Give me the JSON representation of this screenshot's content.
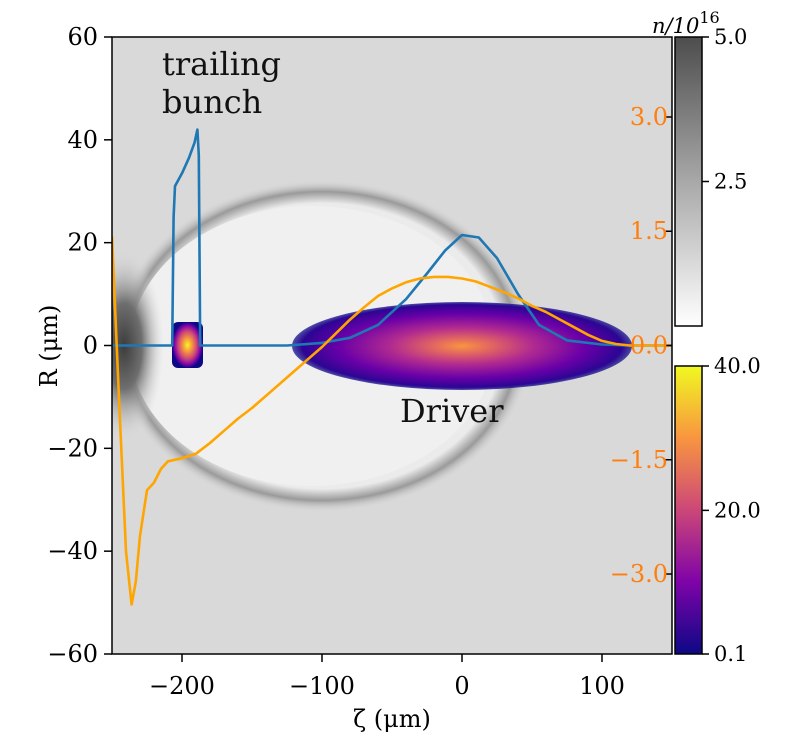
{
  "chart_data": {
    "type": "heatmap",
    "xlabel": "ζ (μm)",
    "ylabel": "R (μm)",
    "xlim": [
      -250,
      150
    ],
    "ylim": [
      -60,
      60
    ],
    "x_ticks": [
      "−200",
      "−100",
      "0",
      "100"
    ],
    "x_tick_values": [
      -200,
      -100,
      0,
      100
    ],
    "y_ticks": [
      "60",
      "40",
      "20",
      "0",
      "−20",
      "−40",
      "−60"
    ],
    "y_tick_values": [
      60,
      40,
      20,
      0,
      -20,
      -40,
      -60
    ],
    "right_axis": {
      "color": "#ff7f0e",
      "ylim": [
        -4.05,
        4.05
      ],
      "ticks": [
        "3.0",
        "1.5",
        "0.0",
        "−1.5",
        "−3.0"
      ],
      "tick_values": [
        3.0,
        1.5,
        0.0,
        -1.5,
        -3.0
      ]
    },
    "colorbars": [
      {
        "label": "n/10",
        "label_sup": "16",
        "colormap": "Greys",
        "range": [
          0,
          5.0
        ],
        "ticks": [
          "5.0",
          "2.5"
        ],
        "tick_values": [
          5.0,
          2.5
        ]
      },
      {
        "colormap": "plasma",
        "range": [
          0.1,
          40.0
        ],
        "ticks": [
          "40.0",
          "20.0",
          "0.1"
        ],
        "tick_values": [
          40.0,
          20.0,
          0.1
        ]
      }
    ],
    "annotations": [
      "trailing\nbunch",
      "Driver"
    ],
    "series": [
      {
        "color": "#1f77b4",
        "axis": "left",
        "x": [
          -250,
          -220,
          -207,
          -206,
          -205,
          -200,
          -195,
          -191,
          -189,
          -188,
          -187,
          -185,
          -180,
          -170,
          -150,
          -125,
          -100,
          -80,
          -60,
          -40,
          -25,
          -12,
          0,
          12,
          25,
          40,
          55,
          75,
          100,
          120,
          150
        ],
        "y": [
          0,
          0,
          0,
          25,
          31,
          33.5,
          36.5,
          39.5,
          42,
          37,
          0,
          0,
          0,
          0,
          0,
          0,
          0.5,
          1.5,
          4,
          9,
          14,
          18.5,
          21.5,
          21,
          17,
          10,
          4,
          1,
          0.2,
          0,
          0
        ]
      },
      {
        "color": "#ffa500",
        "axis": "right",
        "x": [
          -250,
          -245,
          -240,
          -236,
          -233,
          -230,
          -225,
          -220,
          -215,
          -210,
          -200,
          -190,
          -180,
          -170,
          -160,
          -150,
          -140,
          -130,
          -120,
          -110,
          -100,
          -90,
          -80,
          -70,
          -60,
          -50,
          -40,
          -30,
          -20,
          -10,
          0,
          10,
          20,
          30,
          40,
          50,
          60,
          70,
          80,
          90,
          100,
          110,
          120,
          150
        ],
        "y": [
          1.43,
          -0.7,
          -2.7,
          -3.4,
          -3.1,
          -2.5,
          -1.9,
          -1.8,
          -1.62,
          -1.52,
          -1.48,
          -1.42,
          -1.28,
          -1.12,
          -0.96,
          -0.82,
          -0.66,
          -0.5,
          -0.34,
          -0.18,
          -0.02,
          0.16,
          0.34,
          0.5,
          0.65,
          0.75,
          0.83,
          0.88,
          0.9,
          0.9,
          0.88,
          0.84,
          0.77,
          0.7,
          0.62,
          0.52,
          0.44,
          0.34,
          0.24,
          0.14,
          0.06,
          0.02,
          0,
          0
        ]
      }
    ]
  }
}
